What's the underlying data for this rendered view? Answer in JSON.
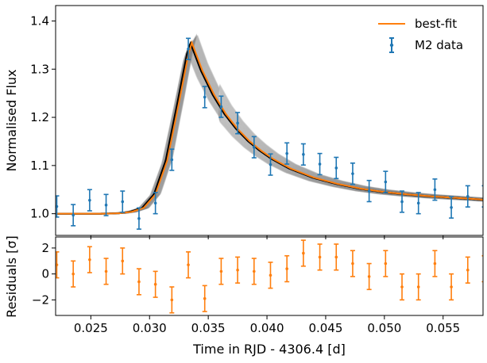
{
  "chart_data": [
    {
      "panel": "top",
      "type": "line",
      "ylabel": "Normalised Flux",
      "xlim": [
        0.022,
        0.0584
      ],
      "ylim": [
        0.955,
        1.432
      ],
      "yticks": [
        "1.0",
        "1.1",
        "1.2",
        "1.3",
        "1.4"
      ],
      "ytick_values": [
        1.0,
        1.1,
        1.2,
        1.3,
        1.4
      ],
      "legend": {
        "position": "top-right",
        "entries": [
          "best-fit",
          "M2 data"
        ]
      },
      "colors": {
        "data": "#1f77b4",
        "fit": "#ff7f0e",
        "model": "#000000",
        "samples": "#808080"
      },
      "series": [
        {
          "name": "best-fit",
          "kind": "line",
          "x": [
            0.022,
            0.024,
            0.026,
            0.0275,
            0.0285,
            0.0295,
            0.0305,
            0.0315,
            0.0325,
            0.0333,
            0.0336,
            0.0345,
            0.0355,
            0.0365,
            0.0375,
            0.0385,
            0.0395,
            0.0405,
            0.042,
            0.044,
            0.046,
            0.048,
            0.05,
            0.052,
            0.054,
            0.056,
            0.058,
            0.0584
          ],
          "y": [
            1.0,
            1.0,
            1.0,
            1.001,
            1.004,
            1.012,
            1.04,
            1.11,
            1.23,
            1.33,
            1.355,
            1.297,
            1.247,
            1.207,
            1.176,
            1.151,
            1.131,
            1.114,
            1.094,
            1.075,
            1.062,
            1.052,
            1.045,
            1.04,
            1.036,
            1.033,
            1.03,
            1.029
          ]
        },
        {
          "name": "M2 data",
          "kind": "errorbar",
          "x": [
            0.0221,
            0.0235,
            0.0249,
            0.0263,
            0.0277,
            0.0291,
            0.0305,
            0.0319,
            0.0333,
            0.0347,
            0.0361,
            0.0375,
            0.0389,
            0.0403,
            0.0417,
            0.0431,
            0.0445,
            0.0459,
            0.0473,
            0.0487,
            0.0501,
            0.0515,
            0.0529,
            0.0543,
            0.0557,
            0.0571,
            0.0585
          ],
          "y": [
            1.015,
            0.997,
            1.028,
            1.018,
            1.025,
            0.99,
            1.022,
            1.112,
            1.342,
            1.242,
            1.222,
            1.188,
            1.138,
            1.102,
            1.125,
            1.123,
            1.103,
            1.095,
            1.083,
            1.047,
            1.066,
            1.025,
            1.022,
            1.05,
            1.013,
            1.036,
            1.036
          ],
          "yerr": [
            0.022,
            0.022,
            0.022,
            0.022,
            0.022,
            0.022,
            0.022,
            0.022,
            0.022,
            0.022,
            0.022,
            0.022,
            0.022,
            0.022,
            0.022,
            0.022,
            0.022,
            0.022,
            0.022,
            0.022,
            0.022,
            0.022,
            0.022,
            0.022,
            0.022,
            0.022,
            0.022
          ]
        }
      ]
    },
    {
      "panel": "bottom",
      "type": "scatter",
      "xlabel": "Time in RJD - 4306.4 [d]",
      "ylabel": "Residuals [σ]",
      "xlim": [
        0.022,
        0.0584
      ],
      "ylim": [
        -3.2,
        2.85
      ],
      "xticks": [
        "0.025",
        "0.030",
        "0.035",
        "0.040",
        "0.045",
        "0.050",
        "0.055"
      ],
      "xtick_values": [
        0.025,
        0.03,
        0.035,
        0.04,
        0.045,
        0.05,
        0.055
      ],
      "yticks": [
        "−2",
        "0",
        "2"
      ],
      "ytick_values": [
        -2,
        0,
        2
      ],
      "series": [
        {
          "name": "",
          "kind": "errorbar",
          "x": [
            0.0221,
            0.0235,
            0.0249,
            0.0263,
            0.0277,
            0.0291,
            0.0305,
            0.0319,
            0.0333,
            0.0347,
            0.0361,
            0.0375,
            0.0389,
            0.0403,
            0.0417,
            0.0431,
            0.0445,
            0.0459,
            0.0473,
            0.0487,
            0.0501,
            0.0515,
            0.0529,
            0.0543,
            0.0557,
            0.0571,
            0.0585
          ],
          "y": [
            0.7,
            0.0,
            1.1,
            0.2,
            1.0,
            -0.6,
            -0.8,
            -2.0,
            0.7,
            -1.9,
            0.2,
            0.3,
            0.2,
            -0.1,
            0.4,
            1.6,
            1.3,
            1.3,
            0.8,
            -0.2,
            0.8,
            -1.0,
            -1.0,
            0.8,
            -1.0,
            0.3,
            0.4
          ],
          "yerr": [
            1,
            1,
            1,
            1,
            1,
            1,
            1,
            1,
            1,
            1,
            1,
            1,
            1,
            1,
            1,
            1,
            1,
            1,
            1,
            1,
            1,
            1,
            1,
            1,
            1,
            1,
            1
          ]
        }
      ]
    }
  ]
}
